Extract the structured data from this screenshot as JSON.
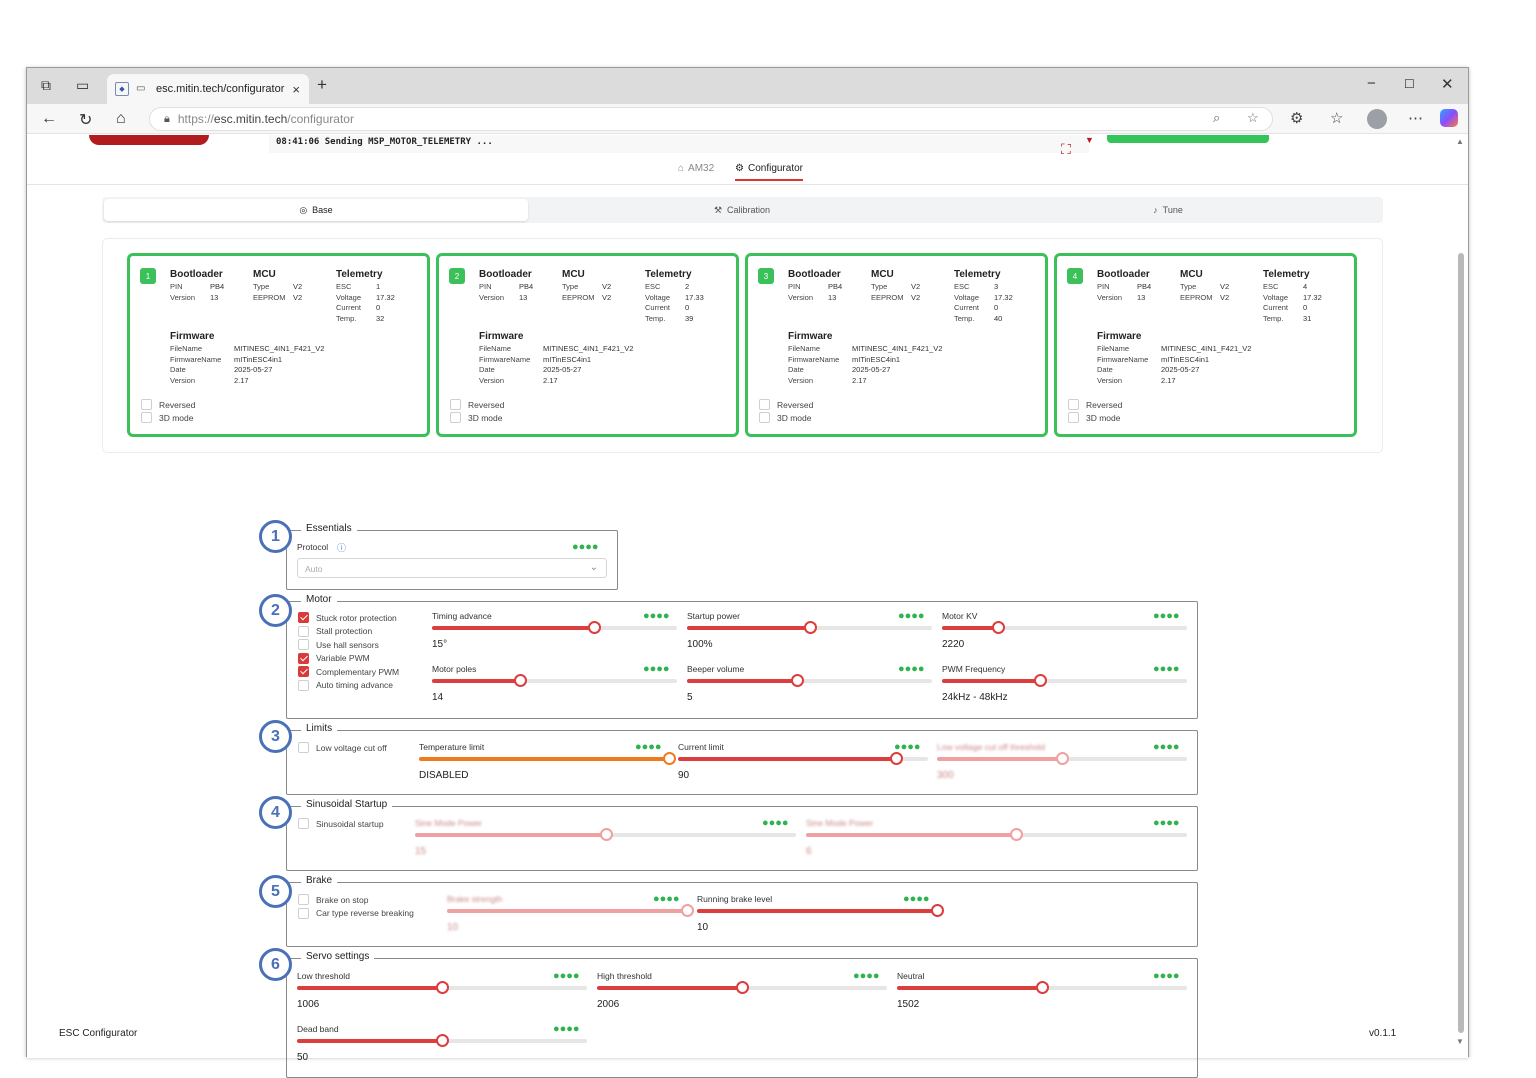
{
  "browser": {
    "tab_title": "esc.mitin.tech/configurator",
    "url_prefix": "https://",
    "url_host": "esc.mitin.tech",
    "url_path": "/configurator"
  },
  "console": {
    "line": "08:41:06 Sending MSP_MOTOR_TELEMETRY ..."
  },
  "main_tabs": [
    {
      "label": "AM32",
      "icon": "home-icon"
    },
    {
      "label": "Configurator",
      "icon": "gear-icon"
    }
  ],
  "sub_tabs": [
    {
      "label": "Base",
      "icon": "target-icon"
    },
    {
      "label": "Calibration",
      "icon": "wrench-icon"
    },
    {
      "label": "Tune",
      "icon": "music-icon"
    }
  ],
  "esc_labels": {
    "bootloader": "Bootloader",
    "mcu": "MCU",
    "telemetry": "Telemetry",
    "firmware": "Firmware",
    "pin": "PIN",
    "version": "Version",
    "type": "Type",
    "eeprom": "EEPROM",
    "esc": "ESC",
    "voltage": "Voltage",
    "current": "Current",
    "temp": "Temp.",
    "filename": "FileName",
    "firmwarename": "FirmwareName",
    "date": "Date",
    "reversed": "Reversed",
    "mode3d": "3D mode"
  },
  "escs": [
    {
      "num": "1",
      "pin": "PB4",
      "bl_version": "13",
      "type": "V2",
      "eeprom": "V2",
      "esc": "1",
      "voltage": "17.32",
      "current": "0",
      "temp": "32",
      "filename": "MITINESC_4IN1_F421_V2",
      "firmwarename": "mITinESC4in1",
      "date": "2025-05-27",
      "fw_version": "2.17"
    },
    {
      "num": "2",
      "pin": "PB4",
      "bl_version": "13",
      "type": "V2",
      "eeprom": "V2",
      "esc": "2",
      "voltage": "17.33",
      "current": "0",
      "temp": "39",
      "filename": "MITINESC_4IN1_F421_V2",
      "firmwarename": "mITinESC4in1",
      "date": "2025-05-27",
      "fw_version": "2.17"
    },
    {
      "num": "3",
      "pin": "PB4",
      "bl_version": "13",
      "type": "V2",
      "eeprom": "V2",
      "esc": "3",
      "voltage": "17.32",
      "current": "0",
      "temp": "40",
      "filename": "MITINESC_4IN1_F421_V2",
      "firmwarename": "mITinESC4in1",
      "date": "2025-05-27",
      "fw_version": "2.17"
    },
    {
      "num": "4",
      "pin": "PB4",
      "bl_version": "13",
      "type": "V2",
      "eeprom": "V2",
      "esc": "4",
      "voltage": "17.32",
      "current": "0",
      "temp": "31",
      "filename": "MITINESC_4IN1_F421_V2",
      "firmwarename": "mITinESC4in1",
      "date": "2025-05-27",
      "fw_version": "2.17"
    }
  ],
  "sections": {
    "essentials": {
      "num": "1",
      "title": "Essentials",
      "protocol_label": "Protocol",
      "protocol_value": "Auto"
    },
    "motor": {
      "num": "2",
      "title": "Motor",
      "checks": [
        {
          "label": "Stuck rotor protection",
          "checked": true
        },
        {
          "label": "Stall protection",
          "checked": false
        },
        {
          "label": "Use hall sensors",
          "checked": false
        },
        {
          "label": "Variable PWM",
          "checked": true
        },
        {
          "label": "Complementary PWM",
          "checked": true
        },
        {
          "label": "Auto timing advance",
          "checked": false
        }
      ],
      "sliders": [
        {
          "label": "Timing advance",
          "value": "15°",
          "level": 0.66
        },
        {
          "label": "Startup power",
          "value": "100%",
          "level": 0.5
        },
        {
          "label": "Motor KV",
          "value": "2220",
          "level": 0.23
        },
        {
          "label": "Motor poles",
          "value": "14",
          "level": 0.36
        },
        {
          "label": "Beeper volume",
          "value": "5",
          "level": 0.45
        },
        {
          "label": "PWM Frequency",
          "value": "24kHz - 48kHz",
          "level": 0.4
        }
      ]
    },
    "limits": {
      "num": "3",
      "title": "Limits",
      "check": "Low voltage cut off",
      "sliders": [
        {
          "label": "Temperature limit",
          "value": "DISABLED",
          "level": 1.0
        },
        {
          "label": "Current limit",
          "value": "90",
          "level": 0.87
        },
        {
          "label": "Low voltage cut off threshold",
          "value": "300",
          "level": 0.5
        }
      ]
    },
    "sinusoidal": {
      "num": "4",
      "title": "Sinusoidal Startup",
      "check": "Sinusoidal startup",
      "sliders": [
        {
          "label": "Sine Mode Power",
          "value": "15",
          "level": 0.5
        },
        {
          "label": "Sine Mode Power",
          "value": "6",
          "level": 0.55
        }
      ]
    },
    "brake": {
      "num": "5",
      "title": "Brake",
      "checks": [
        "Brake on stop",
        "Car type reverse breaking"
      ],
      "sliders": [
        {
          "label": "Brake strength",
          "value": "10",
          "level": 1.0
        },
        {
          "label": "Running brake level",
          "value": "10",
          "level": 1.0
        }
      ]
    },
    "servo": {
      "num": "6",
      "title": "Servo settings",
      "sliders": [
        {
          "label": "Low threshold",
          "value": "1006",
          "level": 0.5
        },
        {
          "label": "High threshold",
          "value": "2006",
          "level": 0.5
        },
        {
          "label": "Neutral",
          "value": "1502",
          "level": 0.5
        },
        {
          "label": "Dead band",
          "value": "50",
          "level": 0.5
        }
      ]
    }
  },
  "footer": {
    "app": "ESC Configurator",
    "version": "v0.1.1"
  },
  "colors": {
    "accent": "#dc3d3d",
    "ok_green": "#3cc05a",
    "marker_blue": "#4a70b8"
  }
}
